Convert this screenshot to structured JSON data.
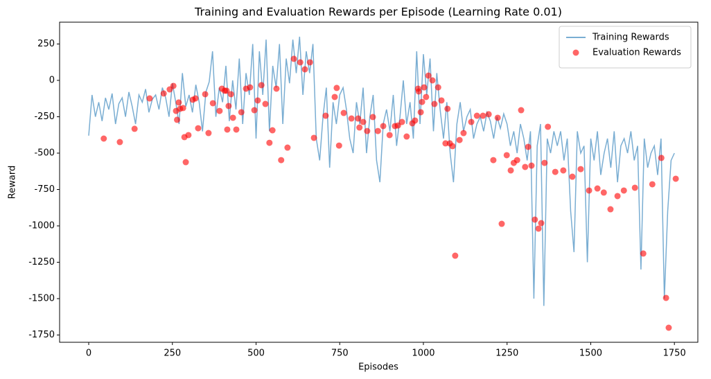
{
  "chart_data": {
    "type": "line_scatter",
    "title": "Training and Evaluation Rewards per Episode (Learning Rate 0.01)",
    "x_label": "Episodes",
    "y_label": "Reward",
    "xlim": [
      -87,
      1820
    ],
    "ylim": [
      -1800,
      400
    ],
    "xticks": [
      0,
      250,
      500,
      750,
      1000,
      1250,
      1500,
      1750
    ],
    "yticks": [
      250,
      0,
      -250,
      -500,
      -750,
      -1000,
      -1250,
      -1500,
      -1750
    ],
    "grid": false,
    "legend": "upper right",
    "series": [
      {
        "name": "Training Rewards",
        "kind": "line",
        "color": "#1f77b4",
        "alpha": 0.6,
        "x": [
          0,
          10,
          20,
          30,
          40,
          50,
          60,
          70,
          80,
          90,
          100,
          110,
          120,
          130,
          140,
          150,
          160,
          170,
          180,
          190,
          200,
          210,
          220,
          230,
          240,
          250,
          260,
          270,
          280,
          290,
          300,
          310,
          320,
          330,
          340,
          350,
          360,
          370,
          380,
          390,
          400,
          410,
          420,
          430,
          440,
          450,
          460,
          470,
          480,
          490,
          500,
          510,
          520,
          530,
          540,
          550,
          560,
          570,
          580,
          590,
          600,
          610,
          620,
          630,
          640,
          650,
          660,
          670,
          680,
          690,
          700,
          710,
          720,
          730,
          740,
          750,
          760,
          770,
          780,
          790,
          800,
          810,
          820,
          830,
          840,
          850,
          860,
          870,
          880,
          890,
          900,
          910,
          920,
          930,
          940,
          950,
          960,
          970,
          980,
          990,
          1000,
          1010,
          1020,
          1030,
          1040,
          1050,
          1060,
          1070,
          1080,
          1090,
          1100,
          1110,
          1120,
          1130,
          1140,
          1150,
          1160,
          1170,
          1180,
          1190,
          1200,
          1210,
          1220,
          1230,
          1240,
          1250,
          1260,
          1270,
          1280,
          1290,
          1300,
          1310,
          1320,
          1330,
          1340,
          1350,
          1360,
          1370,
          1380,
          1390,
          1400,
          1410,
          1420,
          1430,
          1440,
          1450,
          1460,
          1470,
          1480,
          1490,
          1500,
          1510,
          1520,
          1530,
          1540,
          1550,
          1560,
          1570,
          1580,
          1590,
          1600,
          1610,
          1620,
          1630,
          1640,
          1650,
          1660,
          1670,
          1680,
          1690,
          1700,
          1710,
          1720,
          1730,
          1740,
          1750
        ],
        "values": [
          -380,
          -100,
          -250,
          -150,
          -280,
          -120,
          -200,
          -90,
          -300,
          -160,
          -120,
          -250,
          -80,
          -180,
          -300,
          -100,
          -150,
          -60,
          -220,
          -130,
          -100,
          -200,
          -50,
          -120,
          -250,
          -20,
          -150,
          -300,
          50,
          -180,
          -100,
          -220,
          -30,
          -150,
          -350,
          -80,
          -10,
          200,
          -250,
          -50,
          -150,
          100,
          -280,
          0,
          -200,
          150,
          -300,
          50,
          -100,
          250,
          -400,
          200,
          -100,
          280,
          -350,
          100,
          -50,
          250,
          -300,
          150,
          -20,
          280,
          50,
          300,
          -100,
          200,
          50,
          250,
          -400,
          -550,
          -250,
          -50,
          -600,
          -150,
          -300,
          -100,
          -50,
          -200,
          -400,
          -500,
          -150,
          -300,
          -50,
          -500,
          -250,
          -100,
          -550,
          -700,
          -300,
          -200,
          -350,
          -100,
          -450,
          -250,
          0,
          -300,
          -150,
          -400,
          200,
          -300,
          180,
          -100,
          150,
          -350,
          50,
          -200,
          -400,
          -150,
          -500,
          -700,
          -300,
          -150,
          -350,
          -250,
          -200,
          -400,
          -300,
          -250,
          -350,
          -220,
          -280,
          -400,
          -250,
          -330,
          -230,
          -300,
          -450,
          -350,
          -500,
          -300,
          -400,
          -550,
          -350,
          -1500,
          -450,
          -300,
          -1550,
          -400,
          -500,
          -350,
          -450,
          -350,
          -550,
          -400,
          -900,
          -1180,
          -350,
          -500,
          -450,
          -1250,
          -400,
          -550,
          -350,
          -650,
          -500,
          -400,
          -600,
          -350,
          -700,
          -450,
          -400,
          -500,
          -350,
          -550,
          -450,
          -1300,
          -400,
          -600,
          -500,
          -450,
          -650,
          -400,
          -1500,
          -900,
          -550,
          -500
        ]
      },
      {
        "name": "Evaluation Rewards",
        "kind": "scatter",
        "color": "#ff0000",
        "alpha": 0.6,
        "x": [
          45,
          93,
          137,
          182,
          224,
          242,
          253,
          261,
          264,
          269,
          273,
          282,
          286,
          290,
          298,
          311,
          319,
          327,
          348,
          358,
          371,
          391,
          398,
          406,
          412,
          414,
          418,
          425,
          431,
          441,
          456,
          470,
          482,
          495,
          505,
          516,
          528,
          540,
          549,
          561,
          575,
          594,
          613,
          632,
          646,
          661,
          673,
          708,
          735,
          741,
          748,
          762,
          785,
          805,
          809,
          820,
          832,
          849,
          864,
          880,
          899,
          915,
          924,
          936,
          950,
          967,
          975,
          984,
          986,
          992,
          996,
          1002,
          1008,
          1015,
          1027,
          1033,
          1044,
          1054,
          1066,
          1072,
          1079,
          1087,
          1095,
          1108,
          1120,
          1143,
          1160,
          1178,
          1195,
          1209,
          1222,
          1234,
          1249,
          1261,
          1270,
          1280,
          1292,
          1304,
          1313,
          1323,
          1333,
          1344,
          1352,
          1362,
          1372,
          1394,
          1418,
          1445,
          1470,
          1495,
          1520,
          1539,
          1559,
          1580,
          1599,
          1632,
          1657,
          1684,
          1711,
          1725,
          1733,
          1754
        ],
        "values": [
          -400,
          -424,
          -333,
          -124,
          -90,
          -62,
          -38,
          -210,
          -271,
          -152,
          -195,
          -190,
          -390,
          -562,
          -376,
          -133,
          -124,
          -329,
          -95,
          -362,
          -157,
          -210,
          -57,
          -71,
          -71,
          -338,
          -176,
          -95,
          -257,
          -338,
          -219,
          -57,
          -48,
          -205,
          -138,
          -33,
          -162,
          -429,
          -343,
          -57,
          -548,
          -462,
          148,
          124,
          76,
          124,
          -395,
          -243,
          -114,
          -52,
          -448,
          -224,
          -262,
          -262,
          -324,
          -286,
          -348,
          -252,
          -348,
          -314,
          -376,
          -314,
          -310,
          -286,
          -386,
          -295,
          -276,
          -57,
          -76,
          -219,
          -148,
          -48,
          -114,
          33,
          0,
          -162,
          -48,
          -138,
          -433,
          -195,
          -433,
          -452,
          -1205,
          -410,
          -362,
          -286,
          -243,
          -243,
          -233,
          -548,
          -257,
          -986,
          -514,
          -619,
          -567,
          -548,
          -205,
          -595,
          -457,
          -586,
          -957,
          -1019,
          -981,
          -567,
          -319,
          -629,
          -619,
          -662,
          -610,
          -757,
          -743,
          -771,
          -886,
          -795,
          -757,
          -738,
          -1190,
          -714,
          -533,
          -1495,
          -1700,
          -676
        ]
      }
    ]
  }
}
